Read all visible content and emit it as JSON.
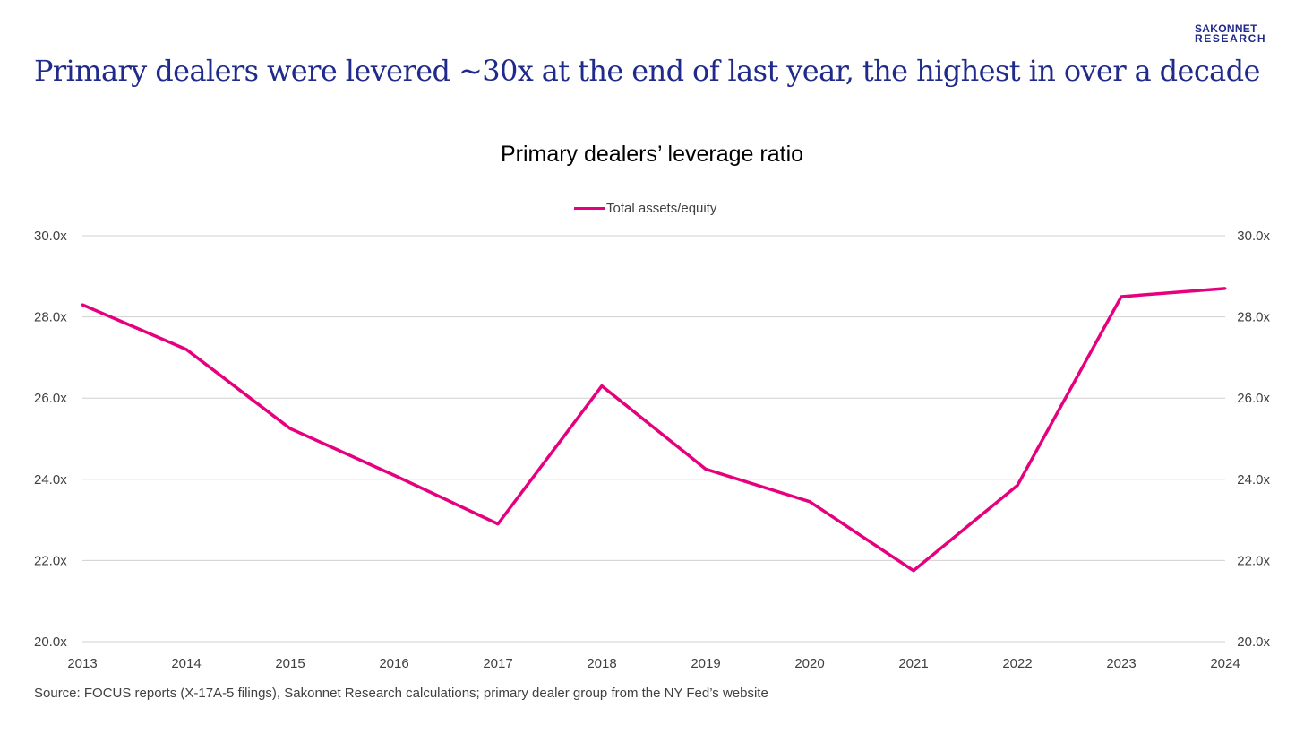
{
  "logo": {
    "line1": "SAKONNET",
    "line2": "RESEARCH"
  },
  "headline": "Primary dealers were levered ~30x at the end of last year, the highest in over a decade",
  "source": "Source: FOCUS reports (X-17A-5 filings), Sakonnet Research calculations; primary dealer group from the NY Fed’s website",
  "chart_data": {
    "type": "line",
    "title": "Primary dealers’ leverage ratio",
    "xlabel": "",
    "ylabel": "",
    "x": [
      "2013",
      "2014",
      "2015",
      "2016",
      "2017",
      "2018",
      "2019",
      "2020",
      "2021",
      "2022",
      "2023",
      "2024"
    ],
    "series": [
      {
        "name": "Total assets/equity",
        "color": "#e6007e",
        "values": [
          28.3,
          27.2,
          25.25,
          24.1,
          22.9,
          26.3,
          24.25,
          23.45,
          21.75,
          23.85,
          28.5,
          28.7
        ]
      }
    ],
    "ylim": [
      20,
      30
    ],
    "yticks": [
      20,
      22,
      24,
      26,
      28,
      30
    ],
    "ytick_labels": [
      "20.0x",
      "22.0x",
      "24.0x",
      "26.0x",
      "28.0x",
      "30.0x"
    ],
    "secondary_axis": true,
    "grid": true,
    "legend_position": "top-center"
  }
}
